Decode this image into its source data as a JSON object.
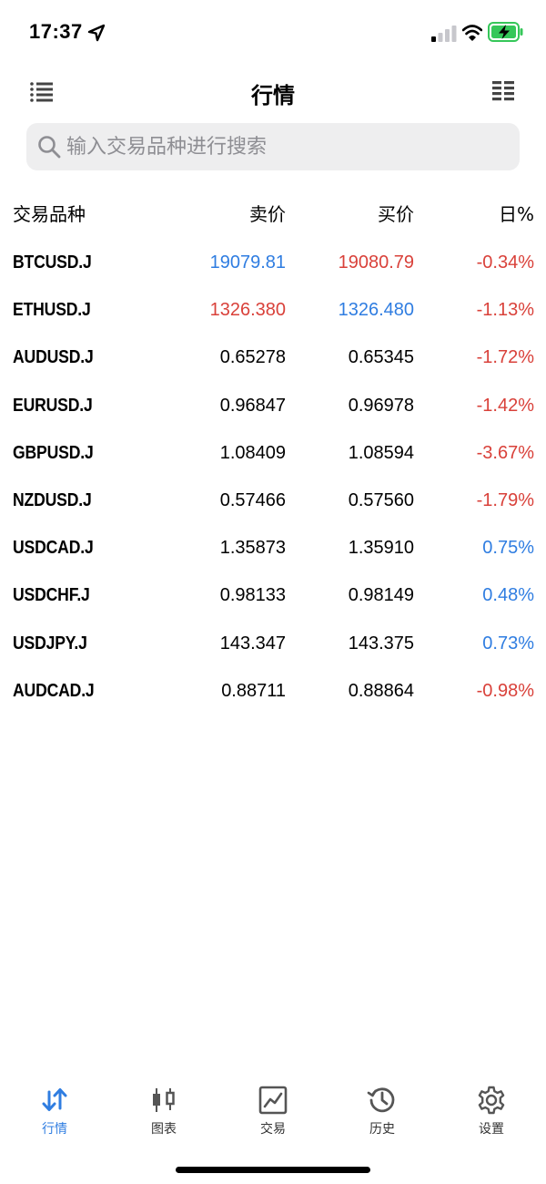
{
  "status_bar": {
    "time": "17:37"
  },
  "header": {
    "title": "行情",
    "left_icon": "list-menu-icon",
    "right_icon": "columns-layout-icon"
  },
  "search": {
    "placeholder": "输入交易品种进行搜索",
    "value": ""
  },
  "table": {
    "columns": [
      "交易品种",
      "卖价",
      "买价",
      "日%"
    ],
    "rows": [
      {
        "symbol": "BTCUSD.J",
        "bid": "19079.81",
        "ask": "19080.79",
        "change": "-0.34%",
        "bid_color": "#2f7de1",
        "ask_color": "#d9413a",
        "change_color": "#d9413a"
      },
      {
        "symbol": "ETHUSD.J",
        "bid": "1326.380",
        "ask": "1326.480",
        "change": "-1.13%",
        "bid_color": "#d9413a",
        "ask_color": "#2f7de1",
        "change_color": "#d9413a"
      },
      {
        "symbol": "AUDUSD.J",
        "bid": "0.65278",
        "ask": "0.65345",
        "change": "-1.72%",
        "bid_color": "#000000",
        "ask_color": "#000000",
        "change_color": "#d9413a"
      },
      {
        "symbol": "EURUSD.J",
        "bid": "0.96847",
        "ask": "0.96978",
        "change": "-1.42%",
        "bid_color": "#000000",
        "ask_color": "#000000",
        "change_color": "#d9413a"
      },
      {
        "symbol": "GBPUSD.J",
        "bid": "1.08409",
        "ask": "1.08594",
        "change": "-3.67%",
        "bid_color": "#000000",
        "ask_color": "#000000",
        "change_color": "#d9413a"
      },
      {
        "symbol": "NZDUSD.J",
        "bid": "0.57466",
        "ask": "0.57560",
        "change": "-1.79%",
        "bid_color": "#000000",
        "ask_color": "#000000",
        "change_color": "#d9413a"
      },
      {
        "symbol": "USDCAD.J",
        "bid": "1.35873",
        "ask": "1.35910",
        "change": "0.75%",
        "bid_color": "#000000",
        "ask_color": "#000000",
        "change_color": "#2f7de1"
      },
      {
        "symbol": "USDCHF.J",
        "bid": "0.98133",
        "ask": "0.98149",
        "change": "0.48%",
        "bid_color": "#000000",
        "ask_color": "#000000",
        "change_color": "#2f7de1"
      },
      {
        "symbol": "USDJPY.J",
        "bid": "143.347",
        "ask": "143.375",
        "change": "0.73%",
        "bid_color": "#000000",
        "ask_color": "#000000",
        "change_color": "#2f7de1"
      },
      {
        "symbol": "AUDCAD.J",
        "bid": "0.88711",
        "ask": "0.88864",
        "change": "-0.98%",
        "bid_color": "#000000",
        "ask_color": "#000000",
        "change_color": "#d9413a"
      }
    ]
  },
  "tab_bar": {
    "tabs": [
      {
        "label": "行情",
        "icon": "quotes-arrows-icon",
        "active": true
      },
      {
        "label": "图表",
        "icon": "candlestick-chart-icon",
        "active": false
      },
      {
        "label": "交易",
        "icon": "trade-chart-icon",
        "active": false
      },
      {
        "label": "历史",
        "icon": "history-clock-icon",
        "active": false
      },
      {
        "label": "设置",
        "icon": "gear-icon",
        "active": false
      }
    ]
  },
  "colors": {
    "accent": "#2f7de1",
    "negative": "#d9413a",
    "positive": "#2f7de1",
    "inactive_icon": "#555555",
    "search_bg": "#eeeeef",
    "battery_charging": "#35c759"
  }
}
